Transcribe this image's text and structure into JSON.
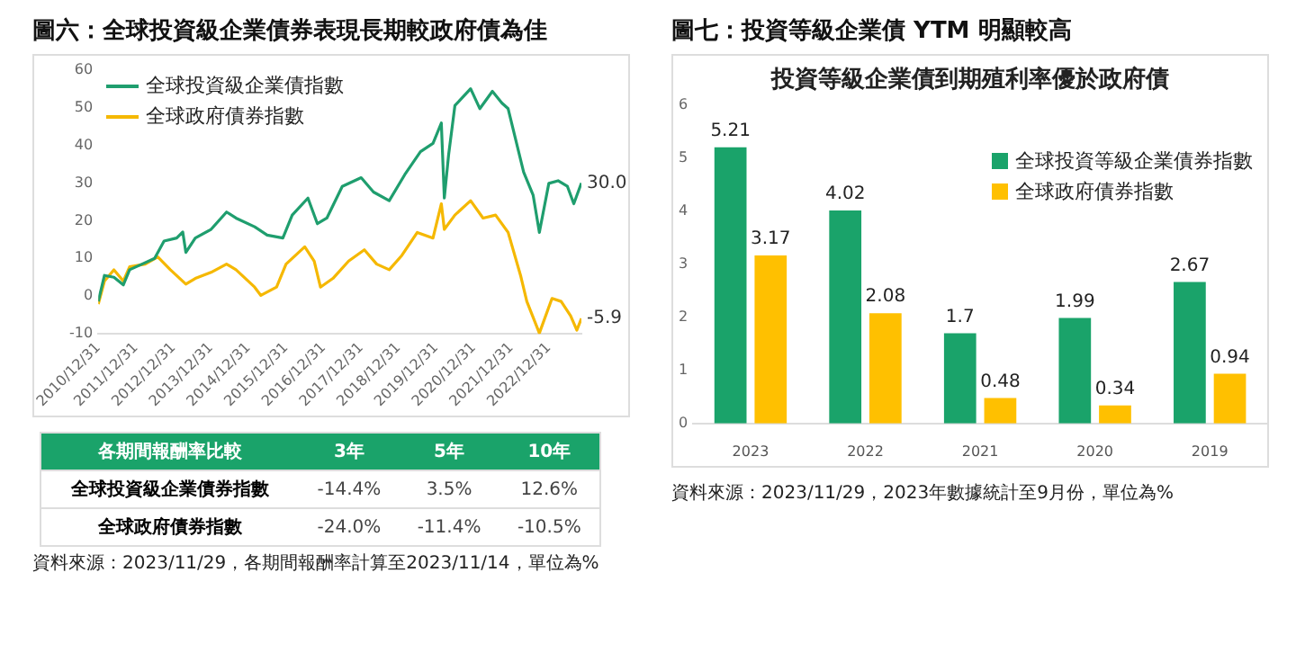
{
  "chart_data": [
    {
      "type": "line",
      "title": "圖六：全球投資級企業債券表現長期較政府債為佳",
      "legend": "top left",
      "grid": false,
      "marker": "none",
      "line_style": "solid",
      "ylim": [
        -10,
        60
      ],
      "yticks": [
        -10,
        0,
        10,
        20,
        30,
        40,
        50,
        60
      ],
      "xlim": [
        "2010-12-31",
        "2023-11-14"
      ],
      "xticks": [
        {
          "value": "2010-12-31",
          "label": "2010/12/31"
        },
        {
          "value": "2011-12-31",
          "label": "2011/12/31"
        },
        {
          "value": "2012-12-31",
          "label": "2012/12/31"
        },
        {
          "value": "2013-12-31",
          "label": "2013/12/31"
        },
        {
          "value": "2014-12-31",
          "label": "2014/12/31"
        },
        {
          "value": "2015-12-31",
          "label": "2015/12/31"
        },
        {
          "value": "2016-12-31",
          "label": "2016/12/31"
        },
        {
          "value": "2017-12-31",
          "label": "2017/12/31"
        },
        {
          "value": "2018-12-31",
          "label": "2018/12/31"
        },
        {
          "value": "2019-12-31",
          "label": "2019/12/31"
        },
        {
          "value": "2020-12-31",
          "label": "2020/12/31"
        },
        {
          "value": "2021-12-31",
          "label": "2021/12/31"
        },
        {
          "value": "2022-12-31",
          "label": "2022/12/31"
        }
      ],
      "series": [
        {
          "name": "全球投資級企業債指數",
          "color": "#1f9e6e",
          "x": [
            "2010-12-31",
            "2011-03",
            "2011-06",
            "2011-09",
            "2011-11",
            "2012-03",
            "2012-07",
            "2012-10",
            "2013-02",
            "2013-04",
            "2013-05",
            "2013-08",
            "2014-01",
            "2014-06",
            "2014-09",
            "2015-03",
            "2015-07",
            "2015-12",
            "2016-03",
            "2016-08",
            "2016-11",
            "2017-02",
            "2017-07",
            "2018-01",
            "2018-05",
            "2018-10",
            "2019-03",
            "2019-08",
            "2019-12",
            "2020-02-20",
            "2020-03-20",
            "2020-05",
            "2020-07",
            "2020-12",
            "2021-03",
            "2021-07",
            "2021-10",
            "2021-12",
            "2022-05",
            "2022-08",
            "2022-10",
            "2023-01",
            "2023-04",
            "2023-07",
            "2023-09",
            "2023-11-14"
          ],
          "values": [
            -1.4,
            5.5,
            5,
            3,
            7,
            8.5,
            10,
            14.6,
            15.4,
            17,
            11.6,
            15.4,
            17.7,
            22.3,
            20.7,
            18.4,
            16.2,
            15.4,
            21.5,
            26,
            19.2,
            20.7,
            29.1,
            31.4,
            27.6,
            25.3,
            32.2,
            38.3,
            40.5,
            45.9,
            26,
            37.5,
            50.5,
            55,
            49.7,
            54.3,
            51.2,
            49.7,
            32.9,
            26.8,
            16.9,
            29.9,
            30.6,
            29.1,
            24.5,
            30
          ]
        },
        {
          "name": "全球政府債券指數",
          "color": "#f5b800",
          "x": [
            "2010-12-31",
            "2011-03",
            "2011-06",
            "2011-09",
            "2011-11",
            "2012-04",
            "2012-08",
            "2012-12",
            "2013-05",
            "2013-08",
            "2014-01",
            "2014-06",
            "2014-09",
            "2015-03",
            "2015-05",
            "2015-10",
            "2016-01",
            "2016-07",
            "2016-10",
            "2016-12",
            "2017-04",
            "2017-09",
            "2018-02",
            "2018-06",
            "2018-10",
            "2019-02",
            "2019-07",
            "2019-12",
            "2020-02-20",
            "2020-03-20",
            "2020-07",
            "2020-12",
            "2021-04",
            "2021-08",
            "2021-12",
            "2022-04",
            "2022-06",
            "2022-10",
            "2023-02",
            "2023-05",
            "2023-08",
            "2023-10",
            "2023-11-14"
          ],
          "values": [
            -2.1,
            4,
            7,
            4,
            7.8,
            8.5,
            10.4,
            7,
            3.2,
            4.7,
            6.3,
            8.5,
            7,
            2.4,
            0.2,
            2.4,
            8.5,
            13.1,
            9.3,
            2.4,
            4.7,
            9.3,
            12.3,
            8.5,
            7,
            10.8,
            16.9,
            15.4,
            24.5,
            17.7,
            21.5,
            25.3,
            20.7,
            21.5,
            16.9,
            5.5,
            -1.4,
            -9.8,
            -0.6,
            -1.4,
            -5.2,
            -9,
            -5.9
          ]
        }
      ],
      "annotations": [
        {
          "text": "30.0",
          "x": "2023-11-14",
          "y": 30
        },
        {
          "text": "-5.9",
          "x": "2023-11-14",
          "y": -5.9
        }
      ]
    },
    {
      "type": "other",
      "title": "各期間報酬率比較",
      "categories": [
        "3年",
        "5年",
        "10年"
      ],
      "series": [
        {
          "name": "全球投資級企業債券指數",
          "values": [
            -14.4,
            3.5,
            12.6
          ],
          "value_labels": [
            "-14.4%",
            "3.5%",
            "12.6%"
          ]
        },
        {
          "name": "全球政府債券指數",
          "values": [
            -24.0,
            -11.4,
            -10.5
          ],
          "value_labels": [
            "-24.0%",
            "-11.4%",
            "-10.5%"
          ]
        }
      ],
      "annotations": [
        "資料來源：2023/11/29，各期間報酬率計算至2023/11/14，單位為%"
      ]
    },
    {
      "type": "bar",
      "title": "圖七：投資等級企業債 YTM 明顯較高",
      "subtitle": "投資等級企業債到期殖利率優於政府債",
      "legend": "top right",
      "grid": false,
      "data_labels": true,
      "categories": [
        "2023",
        "2022",
        "2021",
        "2020",
        "2019"
      ],
      "ylim": [
        0,
        6
      ],
      "yticks": [
        0,
        1,
        2,
        3,
        4,
        5,
        6
      ],
      "series": [
        {
          "name": "全球投資等級企業債券指數",
          "color": "#1aa36a",
          "values": [
            5.21,
            4.02,
            1.7,
            1.99,
            2.67
          ]
        },
        {
          "name": "全球政府債券指數",
          "color": "#ffc000",
          "values": [
            3.17,
            2.08,
            0.48,
            0.34,
            0.94
          ]
        }
      ],
      "annotations": [
        "資料來源：2023/11/29，2023年數據統計至9月份，單位為%"
      ]
    }
  ]
}
